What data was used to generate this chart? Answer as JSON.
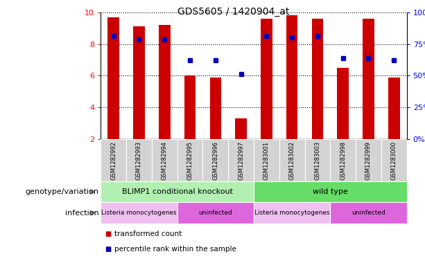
{
  "title": "GDS5605 / 1420904_at",
  "samples": [
    "GSM1282992",
    "GSM1282993",
    "GSM1282994",
    "GSM1282995",
    "GSM1282996",
    "GSM1282997",
    "GSM1283001",
    "GSM1283002",
    "GSM1283003",
    "GSM1282998",
    "GSM1282999",
    "GSM1283000"
  ],
  "red_values": [
    9.7,
    9.1,
    9.2,
    6.0,
    5.9,
    3.3,
    9.6,
    9.8,
    9.6,
    6.5,
    9.6,
    5.9
  ],
  "blue_values": [
    8.5,
    8.3,
    8.3,
    7.0,
    7.0,
    6.1,
    8.5,
    8.4,
    8.5,
    7.1,
    7.1,
    7.0
  ],
  "ymin": 2,
  "ymax": 10,
  "yticks": [
    2,
    4,
    6,
    8,
    10
  ],
  "right_yticks": [
    0,
    25,
    50,
    75,
    100
  ],
  "right_ytick_labels": [
    "0%",
    "25%",
    "50%",
    "75%",
    "100%"
  ],
  "bar_color": "#cc0000",
  "dot_color": "#0000bb",
  "bar_width": 0.45,
  "dot_size": 22,
  "plot_bg_color": "#ffffff",
  "sample_bg_color": "#d3d3d3",
  "genotype_groups": [
    {
      "label": "BLIMP1 conditional knockout",
      "start": 0,
      "end": 6,
      "color": "#b2f0b2"
    },
    {
      "label": "wild type",
      "start": 6,
      "end": 12,
      "color": "#66dd66"
    }
  ],
  "infection_groups": [
    {
      "label": "Listeria monocytogenes",
      "start": 0,
      "end": 3,
      "color": "#f0c0f0"
    },
    {
      "label": "uninfected",
      "start": 3,
      "end": 6,
      "color": "#dd66dd"
    },
    {
      "label": "Listeria monocytogenes",
      "start": 6,
      "end": 9,
      "color": "#f0c0f0"
    },
    {
      "label": "uninfected",
      "start": 9,
      "end": 12,
      "color": "#dd66dd"
    }
  ],
  "legend_red_label": "transformed count",
  "legend_blue_label": "percentile rank within the sample",
  "genotype_label": "genotype/variation",
  "infection_label": "infection"
}
